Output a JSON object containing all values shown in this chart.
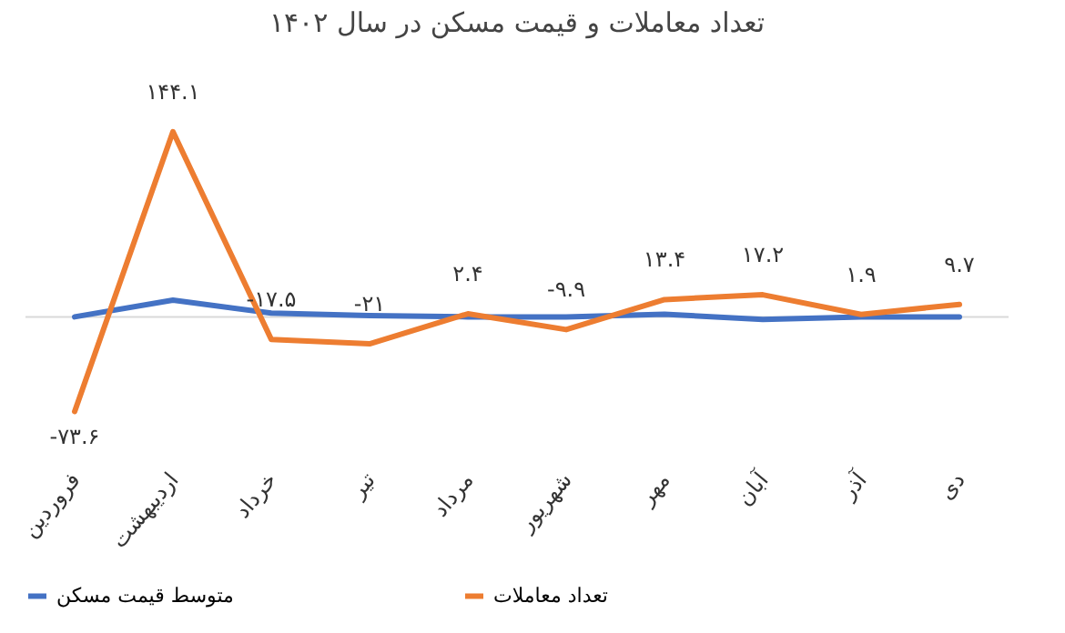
{
  "chart_data": {
    "type": "line",
    "title": "تعداد معاملات و قیمت مسکن در سال ۱۴۰۲",
    "categories": [
      "فروردین",
      "اردیبهشت",
      "خرداد",
      "تیر",
      "مرداد",
      "شهریور",
      "مهر",
      "آبان",
      "آذر",
      "دی"
    ],
    "series": [
      {
        "name": "متوسط قیمت مسکن",
        "color": "#4472c4",
        "values": [
          0,
          13,
          3,
          1,
          0,
          0,
          2,
          -2,
          0,
          0
        ]
      },
      {
        "name": "تعداد معاملات",
        "color": "#ed7d31",
        "values": [
          -73.6,
          144.1,
          -17.5,
          -21,
          2.4,
          -9.9,
          13.4,
          17.2,
          1.9,
          9.7
        ],
        "value_labels": [
          "-۷۳.۶",
          "۱۴۴.۱",
          "-۱۷.۵",
          "-۲۱",
          "۲.۴",
          "-۹.۹",
          "۱۳.۴",
          "۱۷.۲",
          "۱.۹",
          "۹.۷"
        ]
      }
    ],
    "ref_lines": [
      {
        "axis": "y",
        "value": 0,
        "color": "#d9d9d9"
      }
    ],
    "legend": "bottom",
    "grid": false,
    "marker": "none",
    "line_style": "solid"
  }
}
